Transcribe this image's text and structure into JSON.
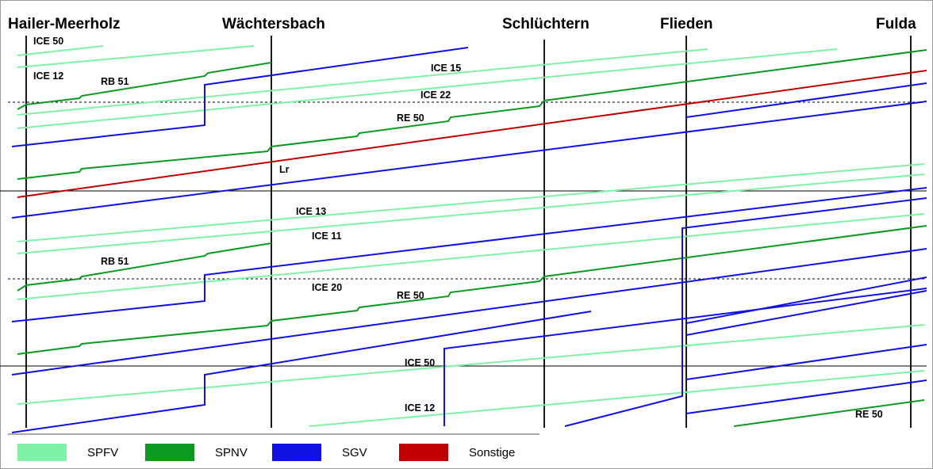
{
  "stations": [
    "Hailer-Meerholz",
    "Wächtersbach",
    "Schlüchtern",
    "Flieden",
    "Fulda"
  ],
  "train_labels": [
    "ICE 50",
    "ICE 12",
    "RB 51",
    "ICE 15",
    "ICE 22",
    "RE 50",
    "Lr",
    "ICE 13",
    "ICE 11",
    "RB 51",
    "ICE 20",
    "RE 50",
    "ICE 50",
    "ICE 12",
    "RE 50"
  ],
  "colors": {
    "SPFV": "#80f2a6",
    "SPNV": "#0d9a20",
    "SGV": "#1010e0",
    "Sonstige": "#c00000"
  },
  "legend": [
    {
      "key": "SPFV",
      "label": "SPFV"
    },
    {
      "key": "SPNV",
      "label": "SPNV"
    },
    {
      "key": "SGV",
      "label": "SGV"
    },
    {
      "key": "Sonstige",
      "label": "Sonstige"
    }
  ]
}
